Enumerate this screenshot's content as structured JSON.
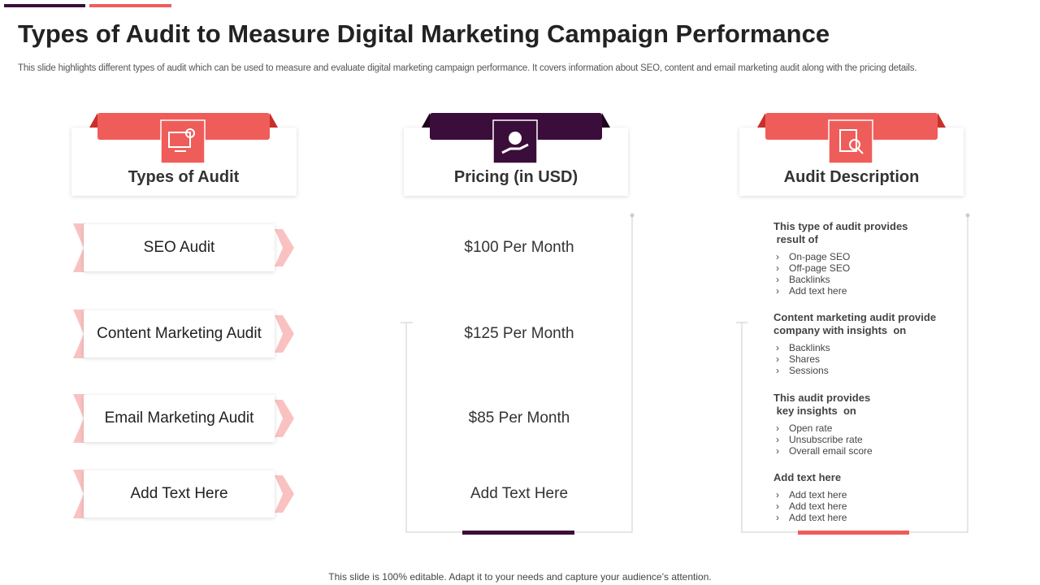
{
  "header": {
    "title": "Types of Audit to Measure Digital Marketing Campaign Performance",
    "subtitle": "This slide highlights different types of audit which can be used to measure and evaluate digital marketing campaign performance. It covers information about SEO, content and email marketing audit along with the pricing details."
  },
  "columns": [
    "Types of Audit",
    "Pricing (in USD)",
    "Audit Description"
  ],
  "rows": [
    {
      "type": "SEO Audit",
      "price": "$100 Per Month"
    },
    {
      "type": "Content Marketing Audit",
      "price": "$125 Per Month"
    },
    {
      "type": "Email Marketing Audit",
      "price": "$85 Per Month"
    },
    {
      "type": "Add Text Here",
      "price": "Add Text Here"
    }
  ],
  "descriptions": [
    {
      "heading": [
        "This type of audit provides",
        " result of"
      ],
      "items": [
        "On-page SEO",
        "Off-page SEO",
        "Backlinks",
        "Add text here"
      ]
    },
    {
      "heading": [
        "Content marketing audit provide",
        "company with insights  on"
      ],
      "items": [
        "Backlinks",
        "Shares",
        "Sessions"
      ]
    },
    {
      "heading": [
        "This audit provides",
        " key insights  on"
      ],
      "items": [
        "Open rate",
        "Unsubscribe rate",
        "Overall email score"
      ]
    },
    {
      "heading": [
        "Add text here"
      ],
      "items": [
        "Add text here",
        "Add text here",
        "Add text here"
      ]
    }
  ],
  "footer": "This slide is 100% editable. Adapt it to your needs and capture your audience’s attention."
}
